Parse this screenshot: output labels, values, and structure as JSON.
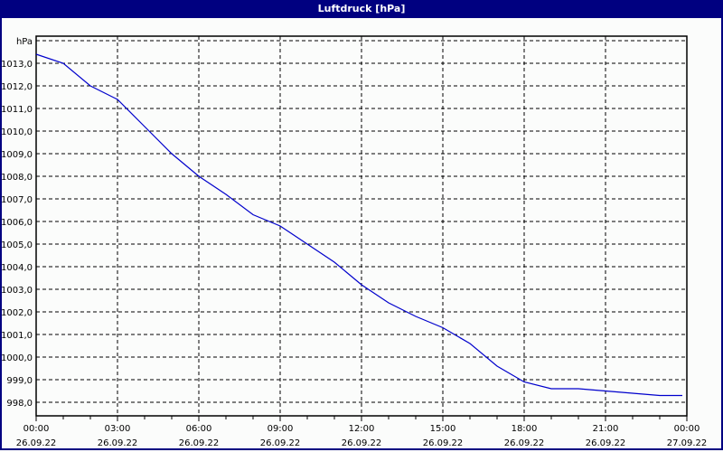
{
  "window": {
    "title": "Luftdruck [hPa]"
  },
  "chart_data": {
    "type": "line",
    "title": "Luftdruck [hPa]",
    "xlabel": "",
    "ylabel": "hPa",
    "ylim": [
      997.5,
      1013.6
    ],
    "grid": true,
    "legend": null,
    "y_ticks": [
      "1013,0",
      "1012,0",
      "1011,0",
      "1010,0",
      "1009,0",
      "1008,0",
      "1007,0",
      "1006,0",
      "1005,0",
      "1004,0",
      "1003,0",
      "1002,0",
      "1001,0",
      "1000,0",
      "999,0",
      "998,0"
    ],
    "x_ticks": [
      {
        "time": "00:00",
        "date": "26.09.22"
      },
      {
        "time": "03:00",
        "date": "26.09.22"
      },
      {
        "time": "06:00",
        "date": "26.09.22"
      },
      {
        "time": "09:00",
        "date": "26.09.22"
      },
      {
        "time": "12:00",
        "date": "26.09.22"
      },
      {
        "time": "15:00",
        "date": "26.09.22"
      },
      {
        "time": "18:00",
        "date": "26.09.22"
      },
      {
        "time": "21:00",
        "date": "26.09.22"
      },
      {
        "time": "00:00",
        "date": "27.09.22"
      }
    ],
    "series": [
      {
        "name": "Luftdruck",
        "color": "#0000CC",
        "x": [
          "00:00",
          "01:00",
          "02:00",
          "03:00",
          "04:00",
          "05:00",
          "06:00",
          "07:00",
          "08:00",
          "09:00",
          "10:00",
          "11:00",
          "12:00",
          "13:00",
          "14:00",
          "15:00",
          "16:00",
          "17:00",
          "18:00",
          "19:00",
          "20:00",
          "21:00",
          "22:00",
          "23:00",
          "23:50"
        ],
        "values": [
          1013.4,
          1013.0,
          1012.0,
          1011.4,
          1010.2,
          1009.0,
          1008.0,
          1007.2,
          1006.3,
          1005.8,
          1005.0,
          1004.2,
          1003.2,
          1002.4,
          1001.8,
          1001.3,
          1000.6,
          999.6,
          998.9,
          998.6,
          998.6,
          998.5,
          998.4,
          998.3,
          998.3
        ]
      }
    ]
  },
  "colors": {
    "title_bar": "#000080",
    "background": "#FBFCFB",
    "line": "#0000CC",
    "grid": "#000000"
  }
}
